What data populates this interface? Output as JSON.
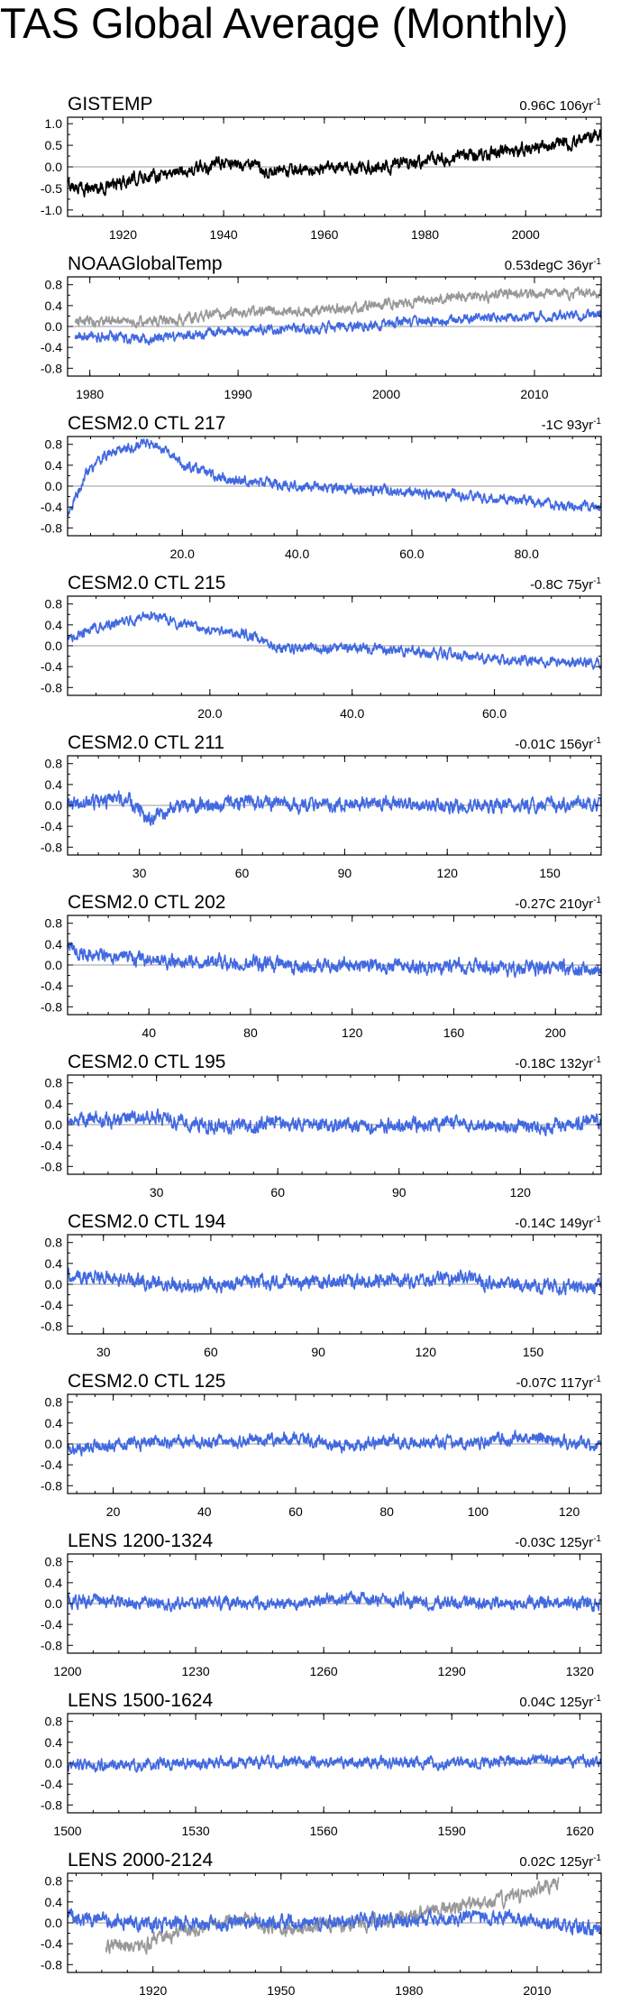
{
  "page": {
    "title": "TAS Global Average (Monthly)"
  },
  "colors": {
    "obs": "#000000",
    "model": "#4169e1",
    "obs_overlay": "#999999",
    "zero_line": "#999999"
  },
  "chart_data": [
    {
      "type": "line",
      "title": "GISTEMP",
      "stat": "0.96C 106yr",
      "stat_sup": "-1",
      "xlim": [
        1909,
        2015
      ],
      "ylim": [
        -1.15,
        1.15
      ],
      "yticks": [
        -1.0,
        -0.5,
        0.0,
        0.5,
        1.0
      ],
      "ytick_labels": [
        "-1.0",
        "-0.5",
        "0.0",
        "0.5",
        "1.0"
      ],
      "xticks": [
        1920,
        1940,
        1960,
        1980,
        2000
      ],
      "xtick_labels": [
        "1920",
        "1940",
        "1960",
        "1980",
        "2000"
      ],
      "series": [
        {
          "color": "#000000",
          "noise": 0.11,
          "keypoints": [
            [
              1909,
              -0.42
            ],
            [
              1912,
              -0.5
            ],
            [
              1917,
              -0.46
            ],
            [
              1925,
              -0.2
            ],
            [
              1935,
              -0.05
            ],
            [
              1940,
              0.1
            ],
            [
              1945,
              0.05
            ],
            [
              1950,
              -0.15
            ],
            [
              1960,
              -0.05
            ],
            [
              1970,
              -0.02
            ],
            [
              1980,
              0.12
            ],
            [
              1990,
              0.28
            ],
            [
              2000,
              0.4
            ],
            [
              2010,
              0.58
            ],
            [
              2015,
              0.78
            ]
          ]
        }
      ]
    },
    {
      "type": "line",
      "title": "NOAAGlobalTemp",
      "stat": "0.53degC 36yr",
      "stat_sup": "-1",
      "xlim": [
        1978.5,
        2014.5
      ],
      "ylim": [
        -0.95,
        0.95
      ],
      "yticks": [
        -0.8,
        -0.4,
        0.0,
        0.4,
        0.8
      ],
      "ytick_labels": [
        "-0.8",
        "-0.4",
        "0.0",
        "0.4",
        "0.8"
      ],
      "xticks": [
        1980,
        1990,
        2000,
        2010
      ],
      "xtick_labels": [
        "1980",
        "1990",
        "2000",
        "2010"
      ],
      "series": [
        {
          "color": "#999999",
          "noise": 0.07,
          "keypoints": [
            [
              1979,
              0.1
            ],
            [
              1985,
              0.1
            ],
            [
              1990,
              0.28
            ],
            [
              1995,
              0.3
            ],
            [
              2000,
              0.42
            ],
            [
              2005,
              0.58
            ],
            [
              2010,
              0.62
            ],
            [
              2014.5,
              0.65
            ]
          ]
        },
        {
          "color": "#4169e1",
          "noise": 0.07,
          "keypoints": [
            [
              1979,
              -0.2
            ],
            [
              1985,
              -0.22
            ],
            [
              1990,
              -0.08
            ],
            [
              1995,
              -0.04
            ],
            [
              2000,
              0.05
            ],
            [
              2005,
              0.15
            ],
            [
              2010,
              0.18
            ],
            [
              2014.5,
              0.22
            ]
          ]
        }
      ]
    },
    {
      "type": "line",
      "title": "CESM2.0 CTL 217",
      "stat": "-1C 93yr",
      "stat_sup": "-1",
      "xlim": [
        0,
        93
      ],
      "ylim": [
        -0.95,
        0.95
      ],
      "yticks": [
        -0.8,
        -0.4,
        0.0,
        0.4,
        0.8
      ],
      "ytick_labels": [
        "-0.8",
        "-0.4",
        "0.0",
        "0.4",
        "0.8"
      ],
      "xticks": [
        20,
        40,
        60,
        80
      ],
      "xtick_labels": [
        "20.0",
        "40.0",
        "60.0",
        "80.0"
      ],
      "series": [
        {
          "color": "#4169e1",
          "noise": 0.07,
          "keypoints": [
            [
              0,
              -0.55
            ],
            [
              1,
              -0.3
            ],
            [
              3,
              0.2
            ],
            [
              6,
              0.55
            ],
            [
              10,
              0.72
            ],
            [
              14,
              0.82
            ],
            [
              17,
              0.7
            ],
            [
              20,
              0.42
            ],
            [
              28,
              0.12
            ],
            [
              40,
              0.0
            ],
            [
              50,
              -0.05
            ],
            [
              60,
              -0.12
            ],
            [
              70,
              -0.2
            ],
            [
              80,
              -0.3
            ],
            [
              93,
              -0.42
            ]
          ]
        }
      ]
    },
    {
      "type": "line",
      "title": "CESM2.0 CTL 215",
      "stat": "-0.8C 75yr",
      "stat_sup": "-1",
      "xlim": [
        0,
        75
      ],
      "ylim": [
        -0.95,
        0.95
      ],
      "yticks": [
        -0.8,
        -0.4,
        0.0,
        0.4,
        0.8
      ],
      "ytick_labels": [
        "-0.8",
        "-0.4",
        "0.0",
        "0.4",
        "0.8"
      ],
      "xticks": [
        20,
        40,
        60
      ],
      "xtick_labels": [
        "20.0",
        "40.0",
        "60.0"
      ],
      "series": [
        {
          "color": "#4169e1",
          "noise": 0.07,
          "keypoints": [
            [
              0,
              0.1
            ],
            [
              3,
              0.3
            ],
            [
              8,
              0.45
            ],
            [
              12,
              0.6
            ],
            [
              15,
              0.45
            ],
            [
              20,
              0.3
            ],
            [
              25,
              0.22
            ],
            [
              28,
              0.1
            ],
            [
              30,
              -0.05
            ],
            [
              40,
              -0.05
            ],
            [
              50,
              -0.12
            ],
            [
              60,
              -0.25
            ],
            [
              68,
              -0.3
            ],
            [
              75,
              -0.35
            ]
          ]
        }
      ]
    },
    {
      "type": "line",
      "title": "CESM2.0 CTL 211",
      "stat": "-0.01C 156yr",
      "stat_sup": "-1",
      "xlim": [
        9,
        165
      ],
      "ylim": [
        -0.95,
        0.95
      ],
      "yticks": [
        -0.8,
        -0.4,
        0.0,
        0.4,
        0.8
      ],
      "ytick_labels": [
        "-0.8",
        "-0.4",
        "0.0",
        "0.4",
        "0.8"
      ],
      "xticks": [
        30,
        60,
        90,
        120,
        150
      ],
      "xtick_labels": [
        "30",
        "60",
        "90",
        "120",
        "150"
      ],
      "series": [
        {
          "color": "#4169e1",
          "noise": 0.1,
          "keypoints": [
            [
              9,
              0.0
            ],
            [
              20,
              0.1
            ],
            [
              27,
              0.15
            ],
            [
              32,
              -0.25
            ],
            [
              40,
              -0.05
            ],
            [
              60,
              0.05
            ],
            [
              80,
              0.0
            ],
            [
              100,
              0.05
            ],
            [
              120,
              -0.02
            ],
            [
              140,
              0.0
            ],
            [
              165,
              0.02
            ]
          ]
        }
      ]
    },
    {
      "type": "line",
      "title": "CESM2.0 CTL 202",
      "stat": "-0.27C 210yr",
      "stat_sup": "-1",
      "xlim": [
        8,
        218
      ],
      "ylim": [
        -0.95,
        0.95
      ],
      "yticks": [
        -0.8,
        -0.4,
        0.0,
        0.4,
        0.8
      ],
      "ytick_labels": [
        "-0.8",
        "-0.4",
        "0.0",
        "0.4",
        "0.8"
      ],
      "xticks": [
        40,
        80,
        120,
        160,
        200
      ],
      "xtick_labels": [
        "40",
        "80",
        "120",
        "160",
        "200"
      ],
      "series": [
        {
          "color": "#4169e1",
          "noise": 0.1,
          "keypoints": [
            [
              8,
              0.3
            ],
            [
              20,
              0.2
            ],
            [
              40,
              0.08
            ],
            [
              60,
              0.05
            ],
            [
              80,
              0.05
            ],
            [
              100,
              -0.02
            ],
            [
              120,
              0.0
            ],
            [
              140,
              -0.05
            ],
            [
              160,
              -0.02
            ],
            [
              180,
              -0.05
            ],
            [
              200,
              -0.05
            ],
            [
              218,
              -0.1
            ]
          ]
        }
      ]
    },
    {
      "type": "line",
      "title": "CESM2.0 CTL 195",
      "stat": "-0.18C 132yr",
      "stat_sup": "-1",
      "xlim": [
        8,
        140
      ],
      "ylim": [
        -0.95,
        0.95
      ],
      "yticks": [
        -0.8,
        -0.4,
        0.0,
        0.4,
        0.8
      ],
      "ytick_labels": [
        "-0.8",
        "-0.4",
        "0.0",
        "0.4",
        "0.8"
      ],
      "xticks": [
        30,
        60,
        90,
        120
      ],
      "xtick_labels": [
        "30",
        "60",
        "90",
        "120"
      ],
      "series": [
        {
          "color": "#4169e1",
          "noise": 0.1,
          "keypoints": [
            [
              8,
              0.15
            ],
            [
              20,
              0.1
            ],
            [
              30,
              0.15
            ],
            [
              40,
              0.0
            ],
            [
              50,
              -0.05
            ],
            [
              60,
              0.05
            ],
            [
              80,
              -0.02
            ],
            [
              100,
              0.0
            ],
            [
              120,
              -0.05
            ],
            [
              140,
              0.05
            ]
          ]
        }
      ]
    },
    {
      "type": "line",
      "title": "CESM2.0 CTL 194",
      "stat": "-0.14C 149yr",
      "stat_sup": "-1",
      "xlim": [
        20,
        169
      ],
      "ylim": [
        -0.95,
        0.95
      ],
      "yticks": [
        -0.8,
        -0.4,
        0.0,
        0.4,
        0.8
      ],
      "ytick_labels": [
        "-0.8",
        "-0.4",
        "0.0",
        "0.4",
        "0.8"
      ],
      "xticks": [
        30,
        60,
        90,
        120,
        150
      ],
      "xtick_labels": [
        "30",
        "60",
        "90",
        "120",
        "150"
      ],
      "series": [
        {
          "color": "#4169e1",
          "noise": 0.1,
          "keypoints": [
            [
              20,
              0.2
            ],
            [
              30,
              0.15
            ],
            [
              40,
              0.05
            ],
            [
              55,
              -0.05
            ],
            [
              70,
              0.05
            ],
            [
              90,
              0.02
            ],
            [
              110,
              0.05
            ],
            [
              130,
              0.12
            ],
            [
              140,
              0.0
            ],
            [
              160,
              -0.05
            ],
            [
              169,
              -0.05
            ]
          ]
        }
      ]
    },
    {
      "type": "line",
      "title": "CESM2.0 CTL 125",
      "stat": "-0.07C 117yr",
      "stat_sup": "-1",
      "xlim": [
        10,
        127
      ],
      "ylim": [
        -0.95,
        0.95
      ],
      "yticks": [
        -0.8,
        -0.4,
        0.0,
        0.4,
        0.8
      ],
      "ytick_labels": [
        "-0.8",
        "-0.4",
        "0.0",
        "0.4",
        "0.8"
      ],
      "xticks": [
        20,
        40,
        60,
        80,
        100,
        120
      ],
      "xtick_labels": [
        "20",
        "40",
        "60",
        "80",
        "100",
        "120"
      ],
      "series": [
        {
          "color": "#4169e1",
          "noise": 0.09,
          "keypoints": [
            [
              10,
              -0.1
            ],
            [
              20,
              0.0
            ],
            [
              40,
              0.05
            ],
            [
              60,
              0.1
            ],
            [
              70,
              -0.05
            ],
            [
              80,
              0.05
            ],
            [
              100,
              0.02
            ],
            [
              110,
              0.15
            ],
            [
              127,
              -0.05
            ]
          ]
        }
      ]
    },
    {
      "type": "line",
      "title": "LENS 1200-1324",
      "stat": "-0.03C 125yr",
      "stat_sup": "-1",
      "xlim": [
        1200,
        1325
      ],
      "ylim": [
        -0.95,
        0.95
      ],
      "yticks": [
        -0.8,
        -0.4,
        0.0,
        0.4,
        0.8
      ],
      "ytick_labels": [
        "-0.8",
        "-0.4",
        "0.0",
        "0.4",
        "0.8"
      ],
      "xticks": [
        1200,
        1230,
        1260,
        1290,
        1320
      ],
      "xtick_labels": [
        "1200",
        "1230",
        "1260",
        "1290",
        "1320"
      ],
      "series": [
        {
          "color": "#4169e1",
          "noise": 0.09,
          "keypoints": [
            [
              1200,
              0.05
            ],
            [
              1230,
              0.02
            ],
            [
              1250,
              -0.02
            ],
            [
              1265,
              0.1
            ],
            [
              1290,
              0.0
            ],
            [
              1310,
              0.02
            ],
            [
              1325,
              0.0
            ]
          ]
        }
      ]
    },
    {
      "type": "line",
      "title": "LENS 1500-1624",
      "stat": "0.04C 125yr",
      "stat_sup": "-1",
      "xlim": [
        1500,
        1625
      ],
      "ylim": [
        -0.95,
        0.95
      ],
      "yticks": [
        -0.8,
        -0.4,
        0.0,
        0.4,
        0.8
      ],
      "ytick_labels": [
        "-0.8",
        "-0.4",
        "0.0",
        "0.4",
        "0.8"
      ],
      "xticks": [
        1500,
        1530,
        1560,
        1590,
        1620
      ],
      "xtick_labels": [
        "1500",
        "1530",
        "1560",
        "1590",
        "1620"
      ],
      "series": [
        {
          "color": "#4169e1",
          "noise": 0.08,
          "keypoints": [
            [
              1500,
              -0.05
            ],
            [
              1530,
              0.0
            ],
            [
              1560,
              0.02
            ],
            [
              1590,
              0.0
            ],
            [
              1610,
              0.05
            ],
            [
              1625,
              0.02
            ]
          ]
        }
      ]
    },
    {
      "type": "line",
      "title": "LENS 2000-2124",
      "stat": "0.02C 125yr",
      "stat_sup": "-1",
      "xlim": [
        1900,
        2025
      ],
      "ylim": [
        -0.95,
        0.95
      ],
      "yticks": [
        -0.8,
        -0.4,
        0.0,
        0.4,
        0.8
      ],
      "ytick_labels": [
        "-0.8",
        "-0.4",
        "0.0",
        "0.4",
        "0.8"
      ],
      "xticks": [
        1920,
        1950,
        1980,
        2010
      ],
      "xtick_labels": [
        "1920",
        "1950",
        "1980",
        "2010"
      ],
      "series": [
        {
          "color": "#999999",
          "noise": 0.1,
          "keypoints": [
            [
              1909,
              -0.45
            ],
            [
              1917,
              -0.45
            ],
            [
              1925,
              -0.2
            ],
            [
              1940,
              0.1
            ],
            [
              1950,
              -0.15
            ],
            [
              1960,
              -0.05
            ],
            [
              1970,
              -0.02
            ],
            [
              1980,
              0.12
            ],
            [
              1990,
              0.28
            ],
            [
              2000,
              0.4
            ],
            [
              2010,
              0.6
            ],
            [
              2015,
              0.8
            ]
          ]
        },
        {
          "color": "#4169e1",
          "noise": 0.1,
          "keypoints": [
            [
              1900,
              0.1
            ],
            [
              1910,
              0.05
            ],
            [
              1920,
              -0.05
            ],
            [
              1940,
              0.0
            ],
            [
              1960,
              0.02
            ],
            [
              1980,
              0.05
            ],
            [
              2000,
              0.1
            ],
            [
              2015,
              -0.02
            ],
            [
              2025,
              -0.15
            ]
          ]
        }
      ]
    }
  ]
}
